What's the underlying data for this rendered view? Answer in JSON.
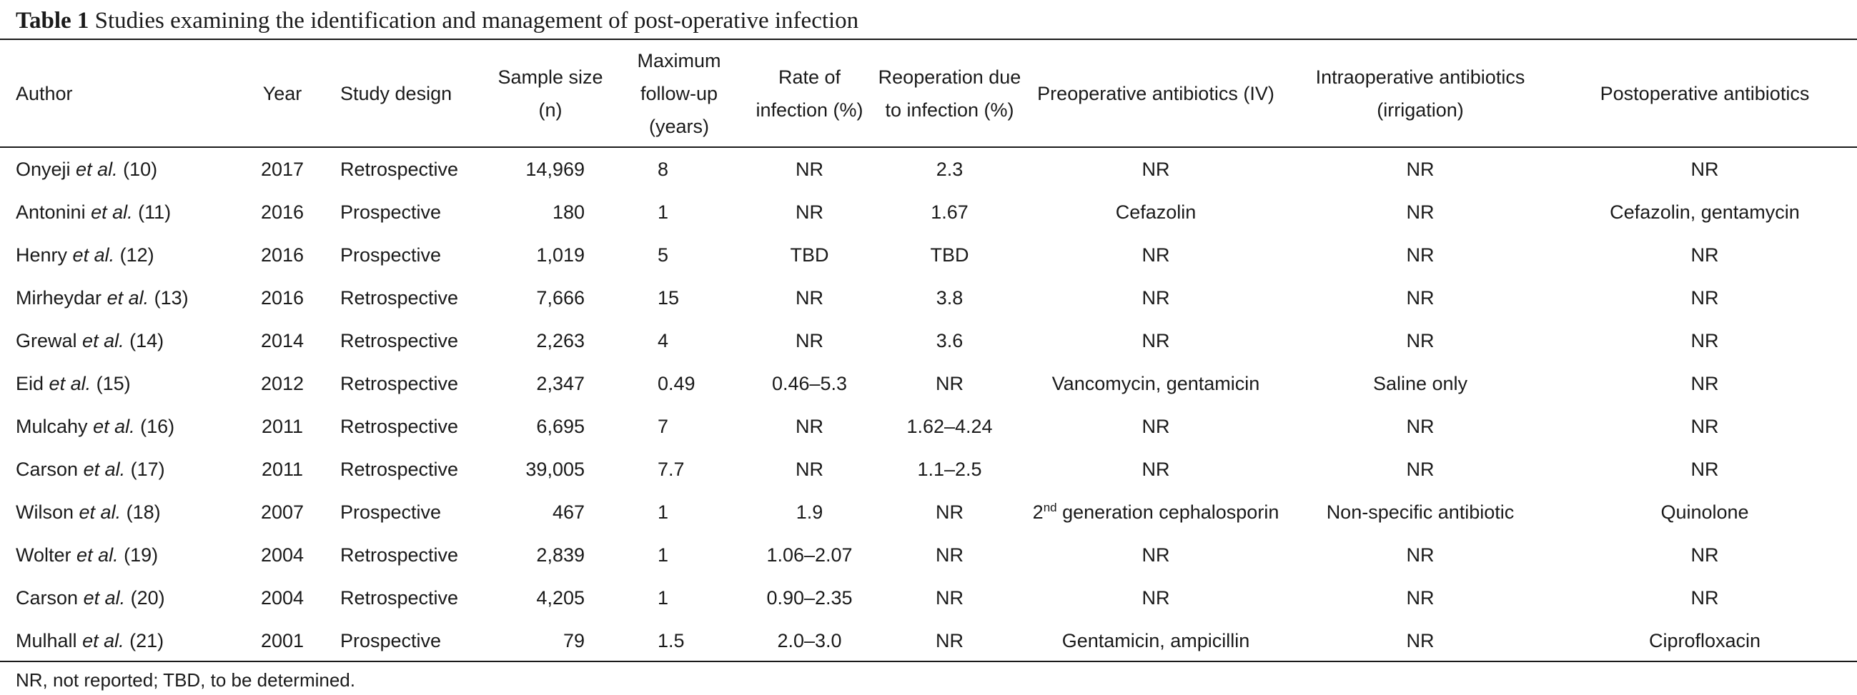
{
  "caption": {
    "label": "Table 1",
    "text": "Studies examining the identification and management of post-operative infection"
  },
  "columns": [
    "Author",
    "Year",
    "Study design",
    "Sample size (n)",
    "Maximum follow-up (years)",
    "Rate of infection (%)",
    "Reoperation due to infection (%)",
    "Preoperative antibiotics (IV)",
    "Intraoperative antibiotics (irrigation)",
    "Postoperative antibiotics"
  ],
  "header": {
    "author": "Author",
    "year": "Year",
    "design": "Study design",
    "sample_1": "Sample size",
    "sample_2": "(n)",
    "followup_1": "Maximum",
    "followup_2": "follow-up",
    "followup_3": "(years)",
    "infection_1": "Rate of",
    "infection_2": "infection (%)",
    "reop_1": "Reoperation due",
    "reop_2": "to infection (%)",
    "preop": "Preoperative antibiotics (IV)",
    "intraop_1": "Intraoperative antibiotics",
    "intraop_2": "(irrigation)",
    "postop": "Postoperative antibiotics"
  },
  "etal": "et al.",
  "rows": [
    {
      "author": "Onyeji",
      "ref": "(10)",
      "year": "2017",
      "design": "Retrospective",
      "sample": "14,969",
      "followup": "8",
      "infection": "NR",
      "reop": "2.3",
      "preop": "NR",
      "intraop": "NR",
      "postop": "NR"
    },
    {
      "author": "Antonini",
      "ref": "(11)",
      "year": "2016",
      "design": "Prospective",
      "sample": "180",
      "followup": "1",
      "infection": "NR",
      "reop": "1.67",
      "preop": "Cefazolin",
      "intraop": "NR",
      "postop": "Cefazolin, gentamycin"
    },
    {
      "author": "Henry",
      "ref": "(12)",
      "year": "2016",
      "design": "Prospective",
      "sample": "1,019",
      "followup": "5",
      "infection": "TBD",
      "reop": "TBD",
      "preop": "NR",
      "intraop": "NR",
      "postop": "NR"
    },
    {
      "author": "Mirheydar",
      "ref": "(13)",
      "year": "2016",
      "design": "Retrospective",
      "sample": "7,666",
      "followup": "15",
      "infection": "NR",
      "reop": "3.8",
      "preop": "NR",
      "intraop": "NR",
      "postop": "NR"
    },
    {
      "author": "Grewal",
      "ref": "(14)",
      "year": "2014",
      "design": "Retrospective",
      "sample": "2,263",
      "followup": "4",
      "infection": "NR",
      "reop": "3.6",
      "preop": "NR",
      "intraop": "NR",
      "postop": "NR"
    },
    {
      "author": "Eid",
      "ref": "(15)",
      "year": "2012",
      "design": "Retrospective",
      "sample": "2,347",
      "followup": "0.49",
      "infection": "0.46–5.3",
      "reop": "NR",
      "preop": "Vancomycin, gentamicin",
      "intraop": "Saline only",
      "postop": "NR"
    },
    {
      "author": "Mulcahy",
      "ref": "(16)",
      "year": "2011",
      "design": "Retrospective",
      "sample": "6,695",
      "followup": "7",
      "infection": "NR",
      "reop": "1.62–4.24",
      "preop": "NR",
      "intraop": "NR",
      "postop": "NR"
    },
    {
      "author": "Carson",
      "ref": "(17)",
      "year": "2011",
      "design": "Retrospective",
      "sample": "39,005",
      "followup": "7.7",
      "infection": "NR",
      "reop": "1.1–2.5",
      "preop": "NR",
      "intraop": "NR",
      "postop": "NR"
    },
    {
      "author": "Wilson",
      "ref": "(18)",
      "year": "2007",
      "design": "Prospective",
      "sample": "467",
      "followup": "1",
      "infection": "1.9",
      "reop": "NR",
      "preop_num": "2",
      "preop_sup": "nd",
      "preop_rest": " generation cephalosporin",
      "intraop": "Non-specific antibiotic",
      "postop": "Quinolone"
    },
    {
      "author": "Wolter",
      "ref": "(19)",
      "year": "2004",
      "design": "Retrospective",
      "sample": "2,839",
      "followup": "1",
      "infection": "1.06–2.07",
      "reop": "NR",
      "preop": "NR",
      "intraop": "NR",
      "postop": "NR"
    },
    {
      "author": "Carson",
      "ref": "(20)",
      "year": "2004",
      "design": "Retrospective",
      "sample": "4,205",
      "followup": "1",
      "infection": "0.90–2.35",
      "reop": "NR",
      "preop": "NR",
      "intraop": "NR",
      "postop": "NR"
    },
    {
      "author": "Mulhall",
      "ref": "(21)",
      "year": "2001",
      "design": "Prospective",
      "sample": "79",
      "followup": "1.5",
      "infection": "2.0–3.0",
      "reop": "NR",
      "preop": "Gentamicin, ampicillin",
      "intraop": "NR",
      "postop": "Ciprofloxacin"
    }
  ],
  "footnote": "NR, not reported; TBD, to be determined."
}
